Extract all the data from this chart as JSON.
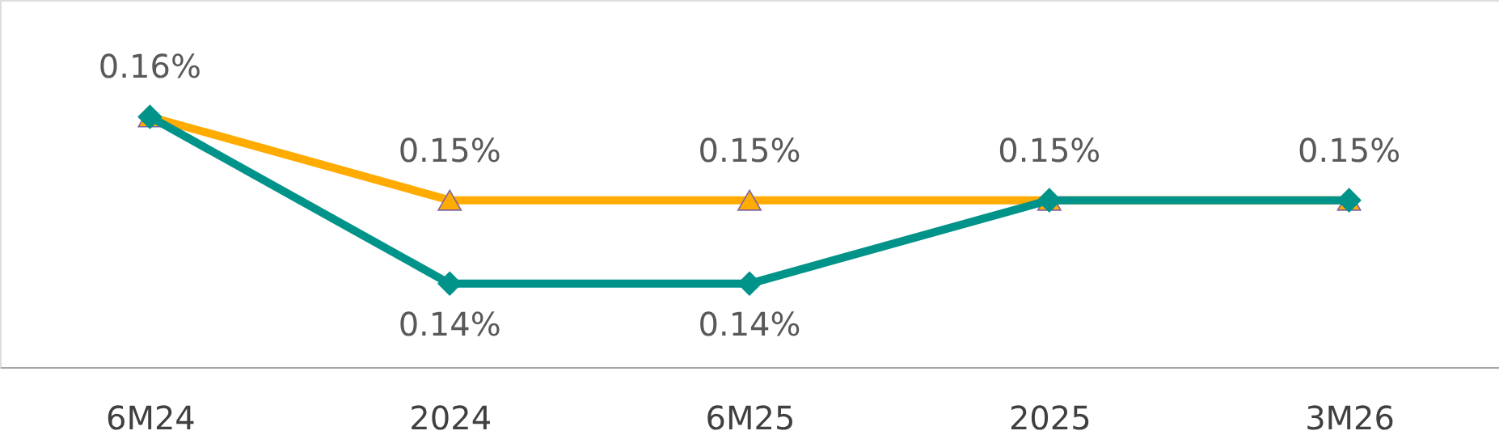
{
  "chart_data": {
    "type": "line",
    "categories": [
      "6M24",
      "2024",
      "6M25",
      "2025",
      "3M26"
    ],
    "series": [
      {
        "color": "#ffab00",
        "marker": "triangle",
        "values": [
          0.16,
          0.15,
          0.15,
          0.15,
          0.15
        ],
        "value_labels": [
          "0.16%",
          "0.15%",
          "0.15%",
          "0.15%",
          "0.15%"
        ]
      },
      {
        "color": "#00938a",
        "marker": "diamond",
        "values": [
          0.16,
          0.14,
          0.14,
          0.15,
          0.15
        ],
        "value_labels": [
          null,
          "0.14%",
          "0.14%",
          null,
          null
        ]
      }
    ],
    "ylim": [
      0.13,
      0.174
    ],
    "tick_labels": "x",
    "line_style": "solid"
  }
}
